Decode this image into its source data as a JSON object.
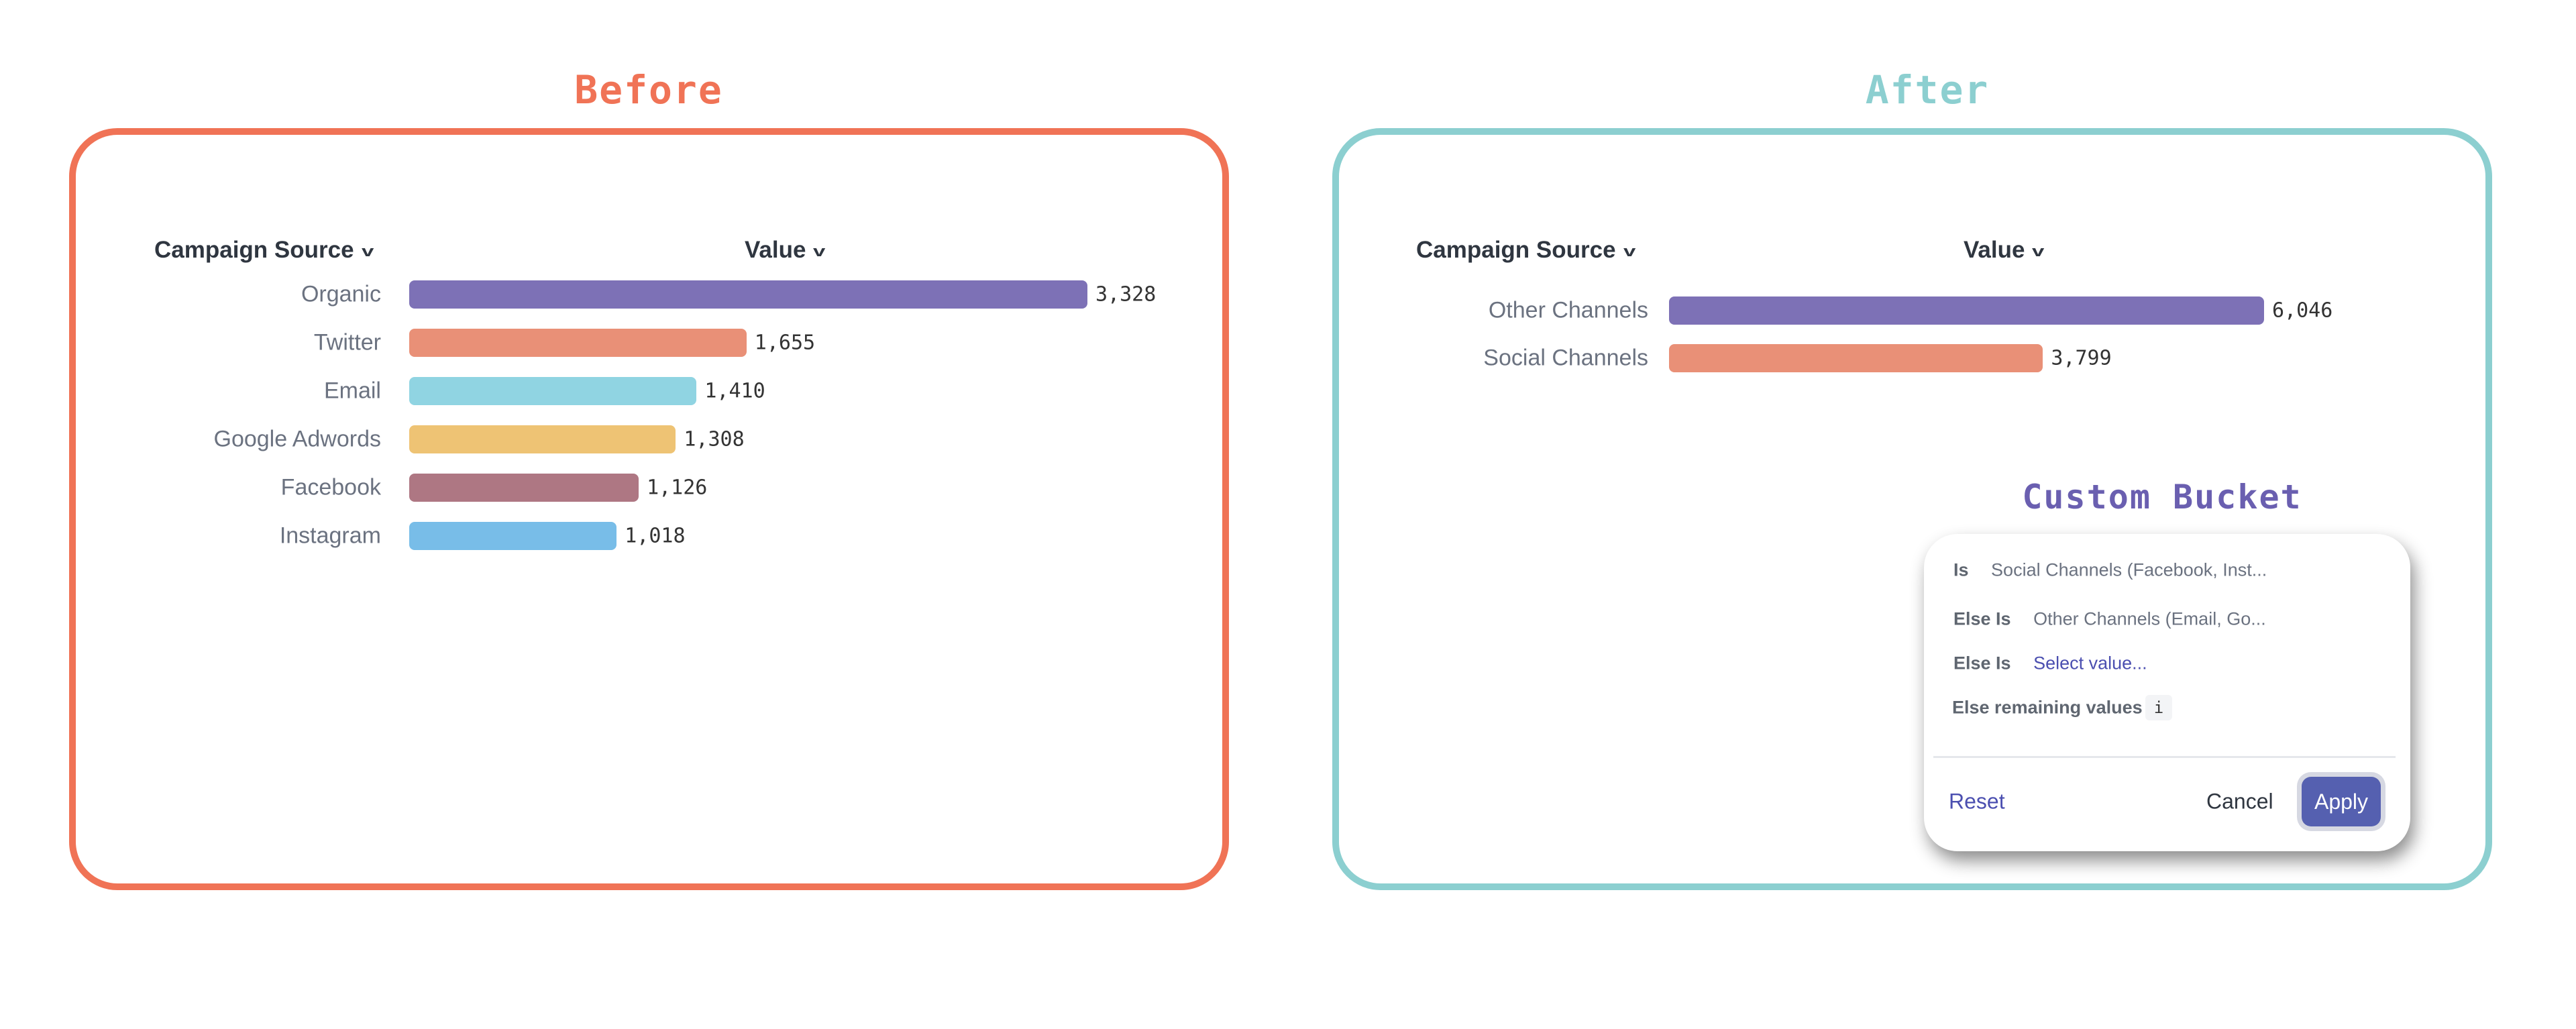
{
  "before": {
    "title": "Before",
    "color": "#f07356"
  },
  "after": {
    "title": "After",
    "color": "#8ccfd0"
  },
  "chart_data": [
    {
      "type": "bar",
      "orientation": "horizontal",
      "category_header": "Campaign Source",
      "value_header": "Value",
      "categories": [
        "Organic",
        "Twitter",
        "Email",
        "Google Adwords",
        "Facebook",
        "Instagram"
      ],
      "values": [
        3328,
        1655,
        1410,
        1308,
        1126,
        1018
      ],
      "labels": [
        "3,328",
        "1,655",
        "1,410",
        "1,308",
        "1,126",
        "1,018"
      ],
      "colors": [
        "#7d71b6",
        "#e99077",
        "#90d4e2",
        "#eec374",
        "#ae7783",
        "#78bde8"
      ]
    },
    {
      "type": "bar",
      "orientation": "horizontal",
      "category_header": "Campaign Source",
      "value_header": "Value",
      "categories": [
        "Other Channels",
        "Social Channels"
      ],
      "values": [
        6046,
        3799
      ],
      "labels": [
        "6,046",
        "3,799"
      ],
      "colors": [
        "#7d71b6",
        "#e99077"
      ]
    }
  ],
  "custom_bucket": {
    "title": "Custom Bucket",
    "title_color": "#6a5fb0",
    "rows": [
      {
        "label": "Is",
        "value": "Social Channels (Facebook, Inst..."
      },
      {
        "label": "Else Is",
        "value": "Other Channels (Email, Go..."
      },
      {
        "label": "Else Is",
        "value": "Select value..."
      }
    ],
    "remaining_label": "Else remaining values",
    "info_icon": "i",
    "reset": "Reset",
    "cancel": "Cancel",
    "apply": "Apply"
  }
}
